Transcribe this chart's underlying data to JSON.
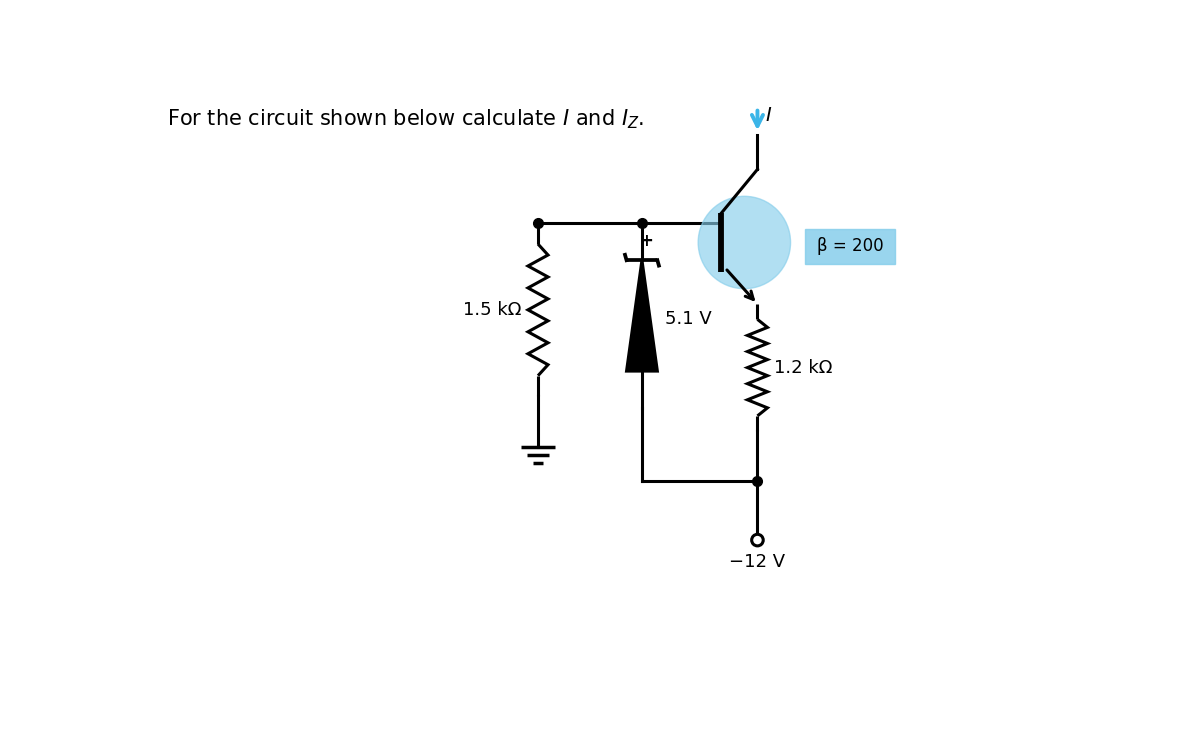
{
  "title": "For the circuit shown below calculate $I$ and $I_Z$.",
  "bg_color": "#ffffff",
  "circuit": {
    "resistor1_label": "1.5 kΩ",
    "zener_label": "5.1 V",
    "resistor2_label": "1.2 kΩ",
    "beta_label": "β = 200",
    "voltage_label": "−12 V",
    "line_color": "#000000",
    "line_width": 2.2,
    "transistor_circle_color": "#87ceeb",
    "transistor_circle_alpha": 0.65,
    "arrow_color": "#3bb5e8",
    "beta_box_color": "#87ceeb"
  }
}
